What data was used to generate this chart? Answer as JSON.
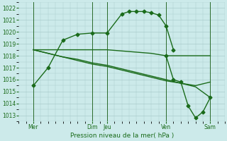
{
  "title": "",
  "xlabel": "Pression niveau de la mer( hPa )",
  "bg_color": "#cceaea",
  "grid_color": "#aacccc",
  "line_color": "#1a6b1a",
  "ylim": [
    1012.5,
    1022.5
  ],
  "yticks": [
    1013,
    1014,
    1015,
    1016,
    1017,
    1018,
    1019,
    1020,
    1021,
    1022
  ],
  "xlim": [
    0,
    14
  ],
  "xtick_positions": [
    1,
    5,
    6,
    10,
    13
  ],
  "xtick_labels": [
    "Mer",
    "Dim",
    "Jeu",
    "Ven",
    "Sam"
  ],
  "vline_positions": [
    1,
    5,
    6,
    10,
    13
  ],
  "series1_x": [
    1,
    2,
    3,
    4,
    5,
    6,
    7,
    7.5,
    8,
    8.5,
    9,
    9.5,
    10,
    10.5
  ],
  "series1_y": [
    1015.5,
    1017.0,
    1019.3,
    1019.8,
    1019.9,
    1019.9,
    1021.5,
    1021.7,
    1021.7,
    1021.7,
    1021.6,
    1021.4,
    1020.5,
    1018.5
  ],
  "series2_x": [
    1,
    2,
    3,
    4,
    5,
    6,
    7,
    8,
    9,
    10,
    11,
    12,
    13
  ],
  "series2_y": [
    1018.5,
    1018.5,
    1018.5,
    1018.5,
    1018.5,
    1018.5,
    1018.4,
    1018.3,
    1018.2,
    1018.0,
    1018.0,
    1018.0,
    1018.0
  ],
  "series3_x": [
    1,
    2,
    3,
    4,
    5,
    6,
    7,
    8,
    9,
    10,
    11,
    12,
    13
  ],
  "series3_y": [
    1018.5,
    1018.2,
    1017.9,
    1017.6,
    1017.3,
    1017.1,
    1016.8,
    1016.5,
    1016.2,
    1015.9,
    1015.7,
    1015.5,
    1015.8
  ],
  "series4_x": [
    1,
    2,
    3,
    4,
    5,
    6,
    7,
    8,
    9,
    10,
    11,
    12,
    13
  ],
  "series4_y": [
    1018.5,
    1018.2,
    1017.9,
    1017.7,
    1017.4,
    1017.2,
    1016.9,
    1016.6,
    1016.3,
    1016.0,
    1015.7,
    1015.4,
    1014.5
  ],
  "series5_x": [
    10,
    10.5,
    11,
    11.5,
    12,
    12.5,
    13
  ],
  "series5_y": [
    1018.0,
    1016.0,
    1015.8,
    1013.8,
    1012.8,
    1013.3,
    1014.5
  ],
  "marker_size": 2.5,
  "line_width": 1.0
}
